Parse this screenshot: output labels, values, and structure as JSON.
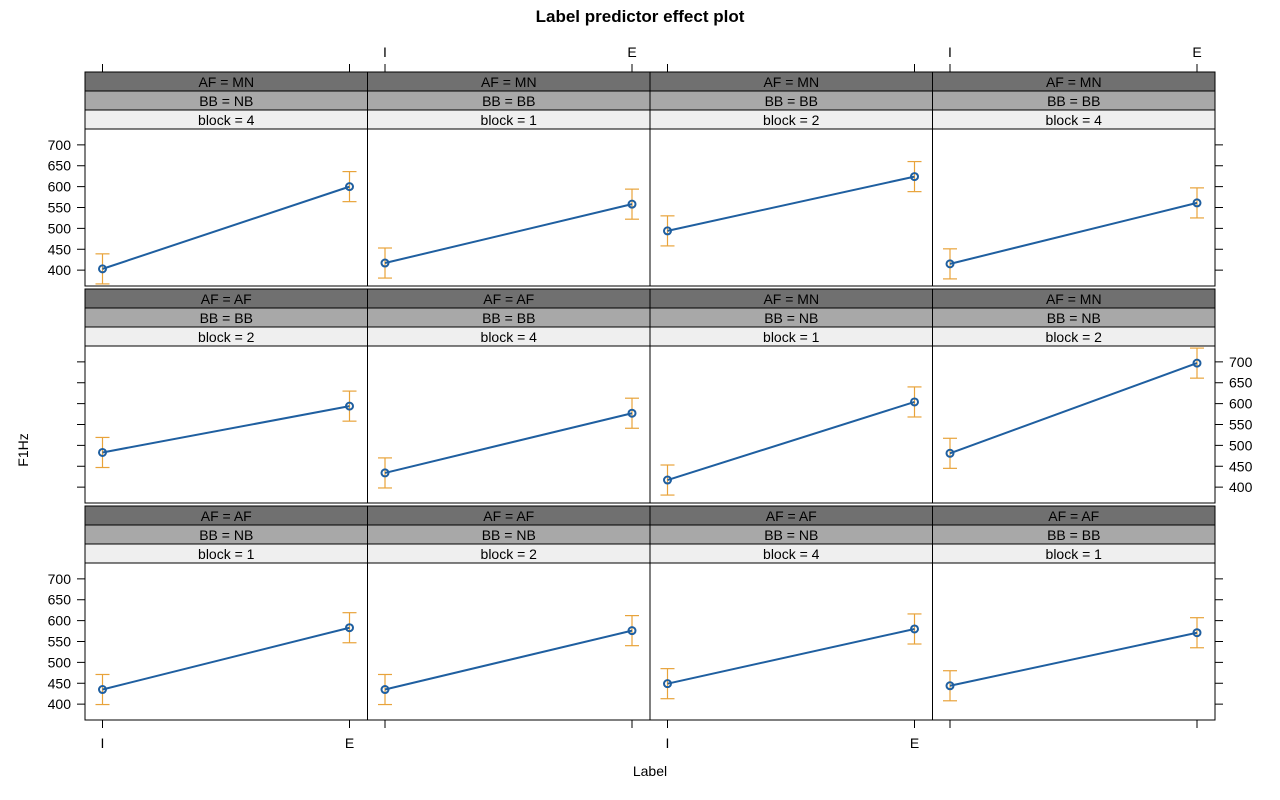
{
  "chart_data": {
    "type": "line",
    "title": "Label predictor effect plot",
    "xlabel": "Label",
    "ylabel": "F1Hz",
    "x_categories": [
      "I",
      "E"
    ],
    "y_ticks": [
      400,
      450,
      500,
      550,
      600,
      650,
      700
    ],
    "ylim": [
      362,
      738
    ],
    "layout": {
      "rows": 3,
      "cols": 4,
      "stacking": "top-to-bottom"
    },
    "colors": {
      "line": "#1f5fa0",
      "errorbar": "#e8a33a",
      "strip_af": "#707070",
      "strip_bb": "#a8a8a8",
      "strip_block": "#efefef"
    },
    "panels": [
      {
        "strips": [
          "AF = MN",
          "BB = NB",
          "block = 4"
        ],
        "values": [
          403,
          600
        ],
        "lower": [
          367,
          564
        ],
        "upper": [
          439,
          636
        ]
      },
      {
        "strips": [
          "AF = MN",
          "BB = BB",
          "block = 1"
        ],
        "values": [
          417,
          558
        ],
        "lower": [
          381,
          522
        ],
        "upper": [
          453,
          594
        ]
      },
      {
        "strips": [
          "AF = MN",
          "BB = BB",
          "block = 2"
        ],
        "values": [
          494,
          624
        ],
        "lower": [
          458,
          588
        ],
        "upper": [
          530,
          660
        ]
      },
      {
        "strips": [
          "AF = MN",
          "BB = BB",
          "block = 4"
        ],
        "values": [
          415,
          561
        ],
        "lower": [
          379,
          525
        ],
        "upper": [
          451,
          597
        ]
      },
      {
        "strips": [
          "AF = AF",
          "BB = BB",
          "block = 2"
        ],
        "values": [
          483,
          594
        ],
        "lower": [
          447,
          558
        ],
        "upper": [
          519,
          630
        ]
      },
      {
        "strips": [
          "AF = AF",
          "BB = BB",
          "block = 4"
        ],
        "values": [
          434,
          577
        ],
        "lower": [
          398,
          541
        ],
        "upper": [
          470,
          613
        ]
      },
      {
        "strips": [
          "AF = MN",
          "BB = NB",
          "block = 1"
        ],
        "values": [
          417,
          604
        ],
        "lower": [
          381,
          568
        ],
        "upper": [
          453,
          640
        ]
      },
      {
        "strips": [
          "AF = MN",
          "BB = NB",
          "block = 2"
        ],
        "values": [
          481,
          697
        ],
        "lower": [
          445,
          661
        ],
        "upper": [
          517,
          733
        ]
      },
      {
        "strips": [
          "AF = AF",
          "BB = NB",
          "block = 1"
        ],
        "values": [
          435,
          583
        ],
        "lower": [
          399,
          547
        ],
        "upper": [
          471,
          619
        ]
      },
      {
        "strips": [
          "AF = AF",
          "BB = NB",
          "block = 2"
        ],
        "values": [
          435,
          576
        ],
        "lower": [
          399,
          540
        ],
        "upper": [
          471,
          612
        ]
      },
      {
        "strips": [
          "AF = AF",
          "BB = NB",
          "block = 4"
        ],
        "values": [
          449,
          580
        ],
        "lower": [
          413,
          544
        ],
        "upper": [
          485,
          616
        ]
      },
      {
        "strips": [
          "AF = AF",
          "BB = BB",
          "block = 1"
        ],
        "values": [
          444,
          571
        ],
        "lower": [
          408,
          535
        ],
        "upper": [
          480,
          607
        ]
      }
    ]
  }
}
